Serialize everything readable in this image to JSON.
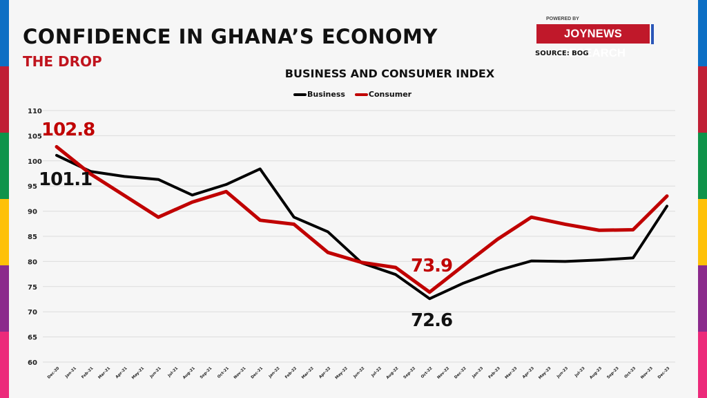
{
  "header": {
    "title": "CONFIDENCE IN GHANA’S ECONOMY",
    "subtitle": "THE DROP",
    "powered_by": "POWERED BY",
    "brand": "JOYNEWS RESEARCH",
    "source": "SOURCE: BOG"
  },
  "side_stripe_colors": [
    "#0d6fc4",
    "#c01f35",
    "#0e934a",
    "#fec108",
    "#8b2a8c",
    "#ec2a7a"
  ],
  "chart_data": {
    "type": "line",
    "title": "BUSINESS AND CONSUMER INDEX",
    "xlabel": "",
    "ylabel": "",
    "ylim": [
      60,
      110
    ],
    "yticks": [
      60,
      65,
      70,
      75,
      80,
      85,
      90,
      95,
      100,
      105,
      110
    ],
    "grid": true,
    "legend_position": "top-center",
    "x": [
      "Dec-20",
      "Jan-21",
      "Feb-21",
      "Mar-21",
      "Apr-21",
      "May-21",
      "Jun-21",
      "Jul-21",
      "Aug-21",
      "Sep-21",
      "Oct-21",
      "Nov-21",
      "Dec-21",
      "Jan-22",
      "Feb-22",
      "Mar-22",
      "Apr-22",
      "May-22",
      "Jun-22",
      "Jul-22",
      "Aug-22",
      "Sep-22",
      "Oct-22",
      "Nov-22",
      "Dec-22",
      "Jan-23",
      "Feb-23",
      "Mar-23",
      "Apr-23",
      "May-23",
      "Jun-23",
      "Jul-23",
      "Aug-23",
      "Sep-23",
      "Oct-23",
      "Nov-23",
      "Dec-23"
    ],
    "point_months": [
      "Dec-20",
      "Feb-21",
      "Apr-21",
      "Jun-21",
      "Aug-21",
      "Oct-21",
      "Dec-21",
      "Feb-22",
      "Apr-22",
      "Jun-22",
      "Aug-22",
      "Oct-22",
      "Dec-22",
      "Feb-23",
      "Apr-23",
      "Jun-23",
      "Aug-23",
      "Oct-23",
      "Dec-23"
    ],
    "series": [
      {
        "name": "Business",
        "color": "#000000",
        "values": [
          101.1,
          97.9,
          96.9,
          96.3,
          93.2,
          95.3,
          98.4,
          88.8,
          85.9,
          79.7,
          77.4,
          72.6,
          75.7,
          78.2,
          80.1,
          80.0,
          80.3,
          80.7,
          91.0
        ]
      },
      {
        "name": "Consumer",
        "color": "#c00000",
        "values": [
          102.8,
          97.4,
          93.1,
          88.8,
          91.8,
          93.9,
          88.2,
          87.4,
          81.8,
          79.8,
          78.8,
          73.9,
          79.2,
          84.4,
          88.8,
          87.4,
          86.2,
          86.3,
          93.0
        ]
      }
    ],
    "annotations": [
      {
        "text": "102.8",
        "series": "Consumer",
        "at": "Dec-20",
        "color": "#c00000"
      },
      {
        "text": "101.1",
        "series": "Business",
        "at": "Dec-20",
        "color": "#111111"
      },
      {
        "text": "73.9",
        "series": "Consumer",
        "at": "Oct-22",
        "color": "#c00000"
      },
      {
        "text": "72.6",
        "series": "Business",
        "at": "Oct-22",
        "color": "#111111"
      }
    ]
  }
}
